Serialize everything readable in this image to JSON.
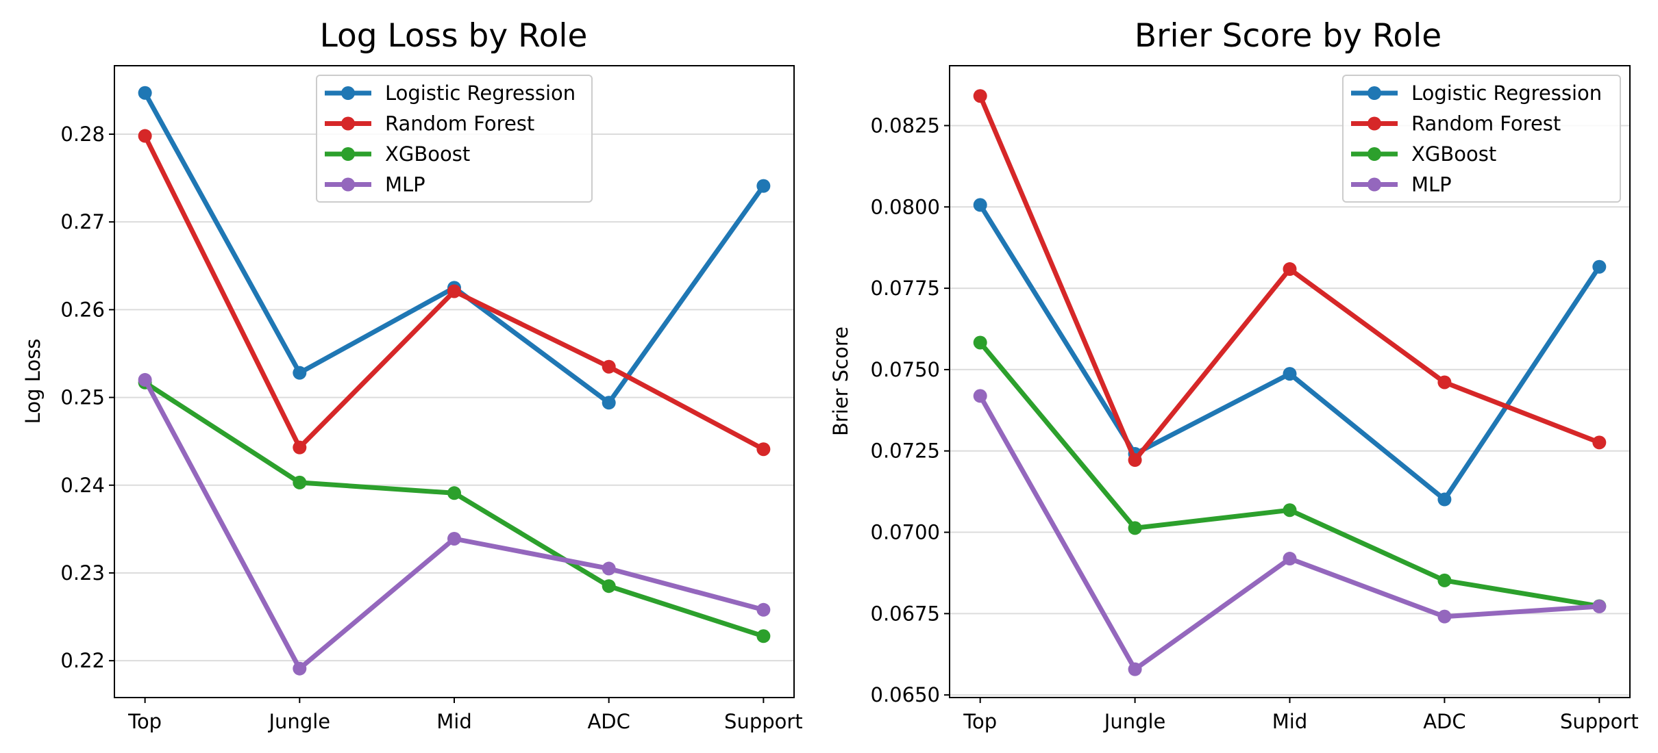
{
  "colors": {
    "Logistic Regression": "#1f77b4",
    "Random Forest": "#d62728",
    "XGBoost": "#2ca02c",
    "MLP": "#9467bd"
  },
  "chart_data": [
    {
      "type": "line",
      "title": "Log Loss by Role",
      "xlabel": "",
      "ylabel": "Log Loss",
      "categories": [
        "Top",
        "Jungle",
        "Mid",
        "ADC",
        "Support"
      ],
      "ylim": [
        0.2158,
        0.2878
      ],
      "yticks": [
        0.22,
        0.23,
        0.24,
        0.25,
        0.26,
        0.27,
        0.28
      ],
      "ytick_labels": [
        "0.22",
        "0.23",
        "0.24",
        "0.25",
        "0.26",
        "0.27",
        "0.28"
      ],
      "grid": "horizontal",
      "legend": "upper center",
      "series": [
        {
          "name": "Logistic Regression",
          "values": [
            0.2847,
            0.2528,
            0.2625,
            0.2494,
            0.2741
          ]
        },
        {
          "name": "Random Forest",
          "values": [
            0.2798,
            0.2443,
            0.2621,
            0.2535,
            0.2441
          ]
        },
        {
          "name": "XGBoost",
          "values": [
            0.2517,
            0.2403,
            0.2391,
            0.2285,
            0.2228
          ]
        },
        {
          "name": "MLP",
          "values": [
            0.252,
            0.2191,
            0.2339,
            0.2305,
            0.2258
          ]
        }
      ]
    },
    {
      "type": "line",
      "title": "Brier Score by Role",
      "xlabel": "",
      "ylabel": "Brier Score",
      "categories": [
        "Top",
        "Jungle",
        "Mid",
        "ADC",
        "Support"
      ],
      "ylim": [
        0.06492,
        0.08434
      ],
      "yticks": [
        0.065,
        0.0675,
        0.07,
        0.0725,
        0.075,
        0.0775,
        0.08,
        0.0825
      ],
      "ytick_labels": [
        "0.0650",
        "0.0675",
        "0.0700",
        "0.0725",
        "0.0750",
        "0.0775",
        "0.0800",
        "0.0825"
      ],
      "grid": "horizontal",
      "legend": "upper right",
      "series": [
        {
          "name": "Logistic Regression",
          "values": [
            0.08006,
            0.07241,
            0.07487,
            0.07101,
            0.07816
          ]
        },
        {
          "name": "Random Forest",
          "values": [
            0.08341,
            0.07222,
            0.07809,
            0.07461,
            0.07276
          ]
        },
        {
          "name": "XGBoost",
          "values": [
            0.07583,
            0.07013,
            0.07068,
            0.06852,
            0.06773
          ]
        },
        {
          "name": "MLP",
          "values": [
            0.07419,
            0.06579,
            0.06919,
            0.06741,
            0.06772
          ]
        }
      ]
    }
  ]
}
